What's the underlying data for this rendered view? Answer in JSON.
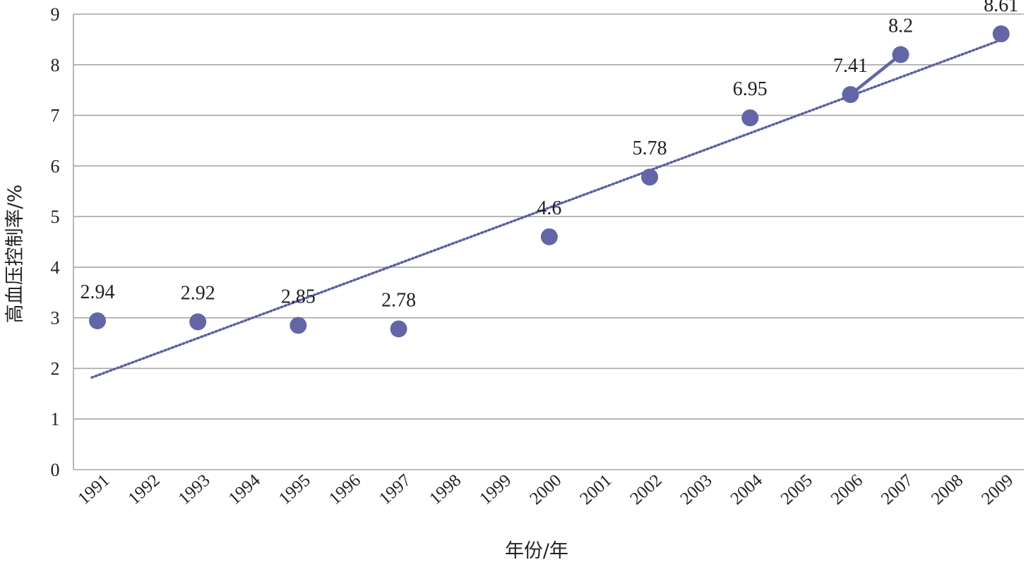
{
  "chart_data": {
    "type": "scatter",
    "title": "",
    "xlabel": "年份/年",
    "ylabel": "高血压控制率/%",
    "ylim": [
      0,
      9
    ],
    "yticks": [
      0,
      1,
      2,
      3,
      4,
      5,
      6,
      7,
      8,
      9
    ],
    "categories": [
      "1991",
      "1992",
      "1993",
      "1994",
      "1995",
      "1996",
      "1997",
      "1998",
      "1999",
      "2000",
      "2001",
      "2002",
      "2003",
      "2004",
      "2005",
      "2006",
      "2007",
      "2008",
      "2009"
    ],
    "points": [
      {
        "x": "1991",
        "y": 2.94,
        "label": "2.94"
      },
      {
        "x": "1993",
        "y": 2.92,
        "label": "2.92"
      },
      {
        "x": "1995",
        "y": 2.85,
        "label": "2.85"
      },
      {
        "x": "1997",
        "y": 2.78,
        "label": "2.78"
      },
      {
        "x": "2000",
        "y": 4.6,
        "label": "4.6"
      },
      {
        "x": "2002",
        "y": 5.78,
        "label": "5.78"
      },
      {
        "x": "2004",
        "y": 6.95,
        "label": "6.95"
      },
      {
        "x": "2006",
        "y": 7.41,
        "label": "7.41"
      },
      {
        "x": "2007",
        "y": 8.2,
        "label": "8.2"
      },
      {
        "x": "2009",
        "y": 8.61,
        "label": "8.61"
      }
    ],
    "connected_segment": [
      "2006",
      "2007"
    ],
    "trendline": {
      "style": "dotted",
      "y_start": 1.82,
      "y_end": 8.5
    },
    "grid": true,
    "legend": "none",
    "colors": {
      "marker": "#6266a6",
      "trend": "#5a5fa0",
      "grid": "#a6a6a6"
    }
  }
}
